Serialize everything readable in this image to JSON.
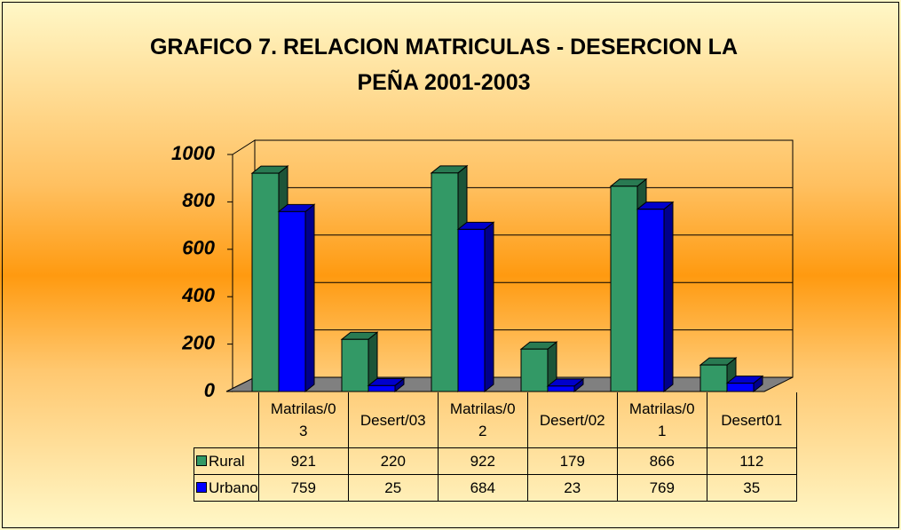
{
  "chart_data": {
    "type": "bar3d",
    "title": "GRAFICO 7. RELACION MATRICULAS - DESERCION LA PEÑA 2001-2003",
    "categories": [
      "Matrilas/03",
      "Desert/03",
      "Matrilas/02",
      "Desert/02",
      "Matrilas/01",
      "Desert01"
    ],
    "series": [
      {
        "name": "Rural",
        "color": "#339966",
        "values": [
          921,
          220,
          922,
          179,
          866,
          112
        ]
      },
      {
        "name": "Urbano",
        "color": "#0000ff",
        "values": [
          759,
          25,
          684,
          23,
          769,
          35
        ]
      }
    ],
    "ylim": [
      0,
      1000
    ],
    "yticks": [
      0,
      200,
      400,
      600,
      800,
      1000
    ],
    "grid": true
  }
}
